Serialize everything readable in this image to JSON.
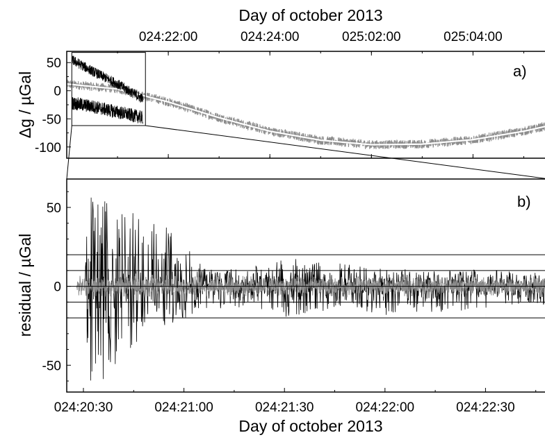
{
  "chart_data": [
    {
      "panel": "a",
      "type": "line",
      "panel_label": "a)",
      "xlabel": "Day of october 2013",
      "xlabel_position": "top",
      "ylabel": "Δg / µGal",
      "ylim": [
        -120,
        70
      ],
      "yticks": [
        50,
        0,
        -50,
        -100
      ],
      "ytick_labels": [
        "50",
        "0",
        "-50",
        "-100"
      ],
      "xrange": [
        "024:20:00",
        "025:05:30"
      ],
      "xticks": [
        {
          "value": "024:22:00",
          "label": "024:22:00"
        },
        {
          "value": "024:24:00",
          "label": "024:24:00"
        },
        {
          "value": "025:02:00",
          "label": "025:02:00"
        },
        {
          "value": "025:04:00",
          "label": "025:04:00"
        }
      ],
      "series": [
        {
          "color": "#8c8c8c",
          "x_hours": [
            0,
            1,
            2,
            3,
            4,
            5,
            6,
            7,
            8,
            9,
            9.5
          ],
          "values": [
            12,
            3,
            -20,
            -48,
            -72,
            -88,
            -96,
            -95,
            -87,
            -72,
            -62
          ],
          "noise_amplitude": 8
        },
        {
          "color": "#ffffff",
          "x_hours": [
            0,
            1,
            2,
            3,
            4,
            5,
            6,
            7,
            8,
            9,
            9.5
          ],
          "values": [
            12,
            3,
            -20,
            -48,
            -72,
            -88,
            -96,
            -95,
            -87,
            -72,
            -62
          ]
        },
        {
          "color": "#000000",
          "x_hours": [
            0.1,
            0.5,
            1.0,
            1.5
          ],
          "values": [
            55,
            35,
            12,
            -15
          ],
          "noise_amplitude": 9
        },
        {
          "color": "#000000",
          "x_hours": [
            0.1,
            0.5,
            1.0,
            1.5
          ],
          "values": [
            -22,
            -28,
            -38,
            -48
          ],
          "noise_amplitude": 12
        }
      ],
      "zoom_box": {
        "x_hours": [
          0.1,
          1.55
        ],
        "ylim": [
          -62,
          68
        ]
      }
    },
    {
      "panel": "b",
      "type": "line",
      "panel_label": "b)",
      "xlabel": "Day of october 2013",
      "ylabel": "residual / µGal",
      "ylim": [
        -67,
        68
      ],
      "yticks": [
        50,
        0,
        -50
      ],
      "ytick_labels": [
        "50",
        "0",
        "-50"
      ],
      "xlim_seconds": [
        0,
        150
      ],
      "xticks": [
        {
          "seconds": 0,
          "label": "024:20:30"
        },
        {
          "seconds": 30,
          "label": "024:21:00"
        },
        {
          "seconds": 60,
          "label": "024:21:30"
        },
        {
          "seconds": 90,
          "label": "024:22:00"
        },
        {
          "seconds": 120,
          "label": "024:22:30"
        }
      ],
      "reference_lines": [
        20,
        10,
        0,
        -10,
        -20
      ],
      "series": [
        {
          "color": "#000000",
          "envelope_seconds": [
            0,
            2,
            5,
            10,
            15,
            20,
            25,
            30,
            35,
            40,
            50,
            60,
            70,
            80,
            90,
            100,
            110,
            120,
            130,
            140,
            145
          ],
          "envelope_upper": [
            5,
            68,
            58,
            50,
            48,
            42,
            38,
            28,
            14,
            10,
            13,
            18,
            16,
            14,
            11,
            11,
            10,
            11,
            9,
            10,
            6
          ],
          "envelope_lower": [
            -5,
            -64,
            -60,
            -55,
            -42,
            -30,
            -24,
            -22,
            -15,
            -14,
            -13,
            -20,
            -18,
            -14,
            -20,
            -18,
            -16,
            -14,
            -12,
            -12,
            -8
          ]
        },
        {
          "color": "#8c8c8c",
          "noise_amplitude": 6
        }
      ]
    }
  ]
}
